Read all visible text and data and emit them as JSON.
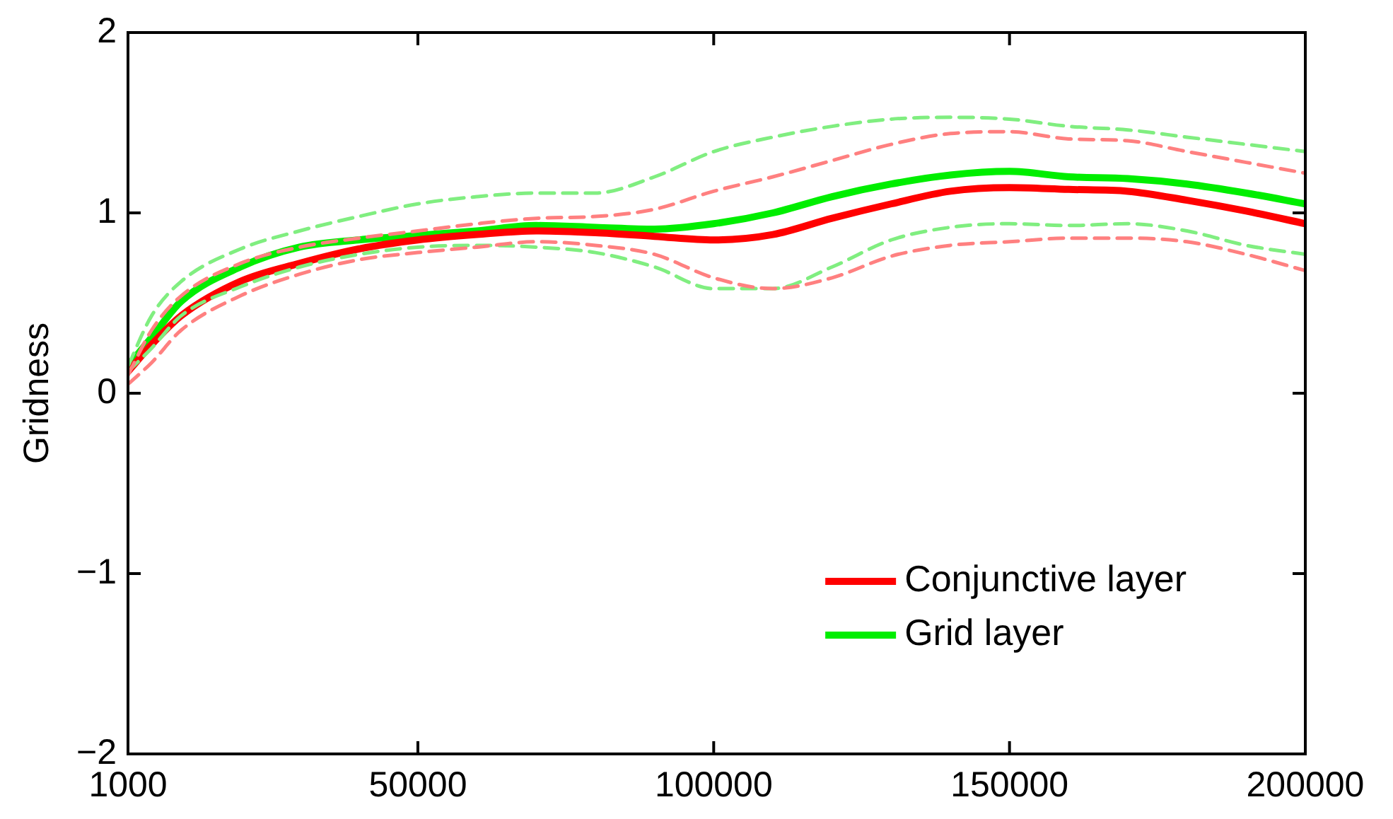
{
  "chart_data": {
    "type": "line",
    "ylabel": "Gridness",
    "x": [
      1000,
      5000,
      10000,
      20000,
      30000,
      40000,
      50000,
      60000,
      70000,
      80000,
      90000,
      100000,
      110000,
      120000,
      130000,
      140000,
      150000,
      160000,
      170000,
      180000,
      190000,
      200000
    ],
    "xlim": [
      1000,
      200000
    ],
    "xticks": [
      1000,
      50000,
      100000,
      150000,
      200000
    ],
    "ylim": [
      -2,
      2
    ],
    "yticks": [
      {
        "value": -2,
        "label": "−2"
      },
      {
        "value": -1,
        "label": "−1"
      },
      0,
      1,
      2
    ],
    "legend": "bottom right",
    "line_style": "solid",
    "marker": "none",
    "series": [
      {
        "color": "#ff8080",
        "line_style": "dashed",
        "values": [
          0.05,
          0.17,
          0.35,
          0.54,
          0.66,
          0.74,
          0.78,
          0.81,
          0.84,
          0.82,
          0.77,
          0.64,
          0.58,
          0.64,
          0.76,
          0.82,
          0.84,
          0.86,
          0.86,
          0.84,
          0.77,
          0.68
        ]
      },
      {
        "color": "#ff8080",
        "line_style": "dashed",
        "values": [
          0.1,
          0.35,
          0.54,
          0.72,
          0.81,
          0.86,
          0.9,
          0.94,
          0.97,
          0.98,
          1.02,
          1.12,
          1.2,
          1.29,
          1.38,
          1.44,
          1.45,
          1.41,
          1.4,
          1.34,
          1.28,
          1.22
        ]
      },
      {
        "color": "#80ee80",
        "line_style": "dashed",
        "values": [
          0.12,
          0.25,
          0.43,
          0.59,
          0.7,
          0.77,
          0.81,
          0.82,
          0.81,
          0.78,
          0.7,
          0.58,
          0.58,
          0.7,
          0.85,
          0.92,
          0.94,
          0.93,
          0.94,
          0.9,
          0.82,
          0.77
        ]
      },
      {
        "color": "#80ee80",
        "line_style": "dashed",
        "values": [
          0.15,
          0.43,
          0.62,
          0.8,
          0.9,
          0.98,
          1.05,
          1.09,
          1.11,
          1.11,
          1.2,
          1.34,
          1.42,
          1.48,
          1.52,
          1.53,
          1.52,
          1.48,
          1.46,
          1.42,
          1.38,
          1.34
        ]
      },
      {
        "name": "Conjunctive layer",
        "color": "#ff0000",
        "values": [
          0.12,
          0.27,
          0.43,
          0.62,
          0.72,
          0.8,
          0.85,
          0.88,
          0.9,
          0.89,
          0.87,
          0.85,
          0.88,
          0.97,
          1.05,
          1.12,
          1.14,
          1.13,
          1.12,
          1.07,
          1.01,
          0.94
        ]
      },
      {
        "name": "Grid layer",
        "color": "#00ee00",
        "values": [
          0.15,
          0.31,
          0.51,
          0.7,
          0.81,
          0.85,
          0.875,
          0.9,
          0.93,
          0.92,
          0.91,
          0.94,
          1.0,
          1.09,
          1.16,
          1.21,
          1.23,
          1.2,
          1.19,
          1.16,
          1.11,
          1.05
        ]
      }
    ]
  }
}
